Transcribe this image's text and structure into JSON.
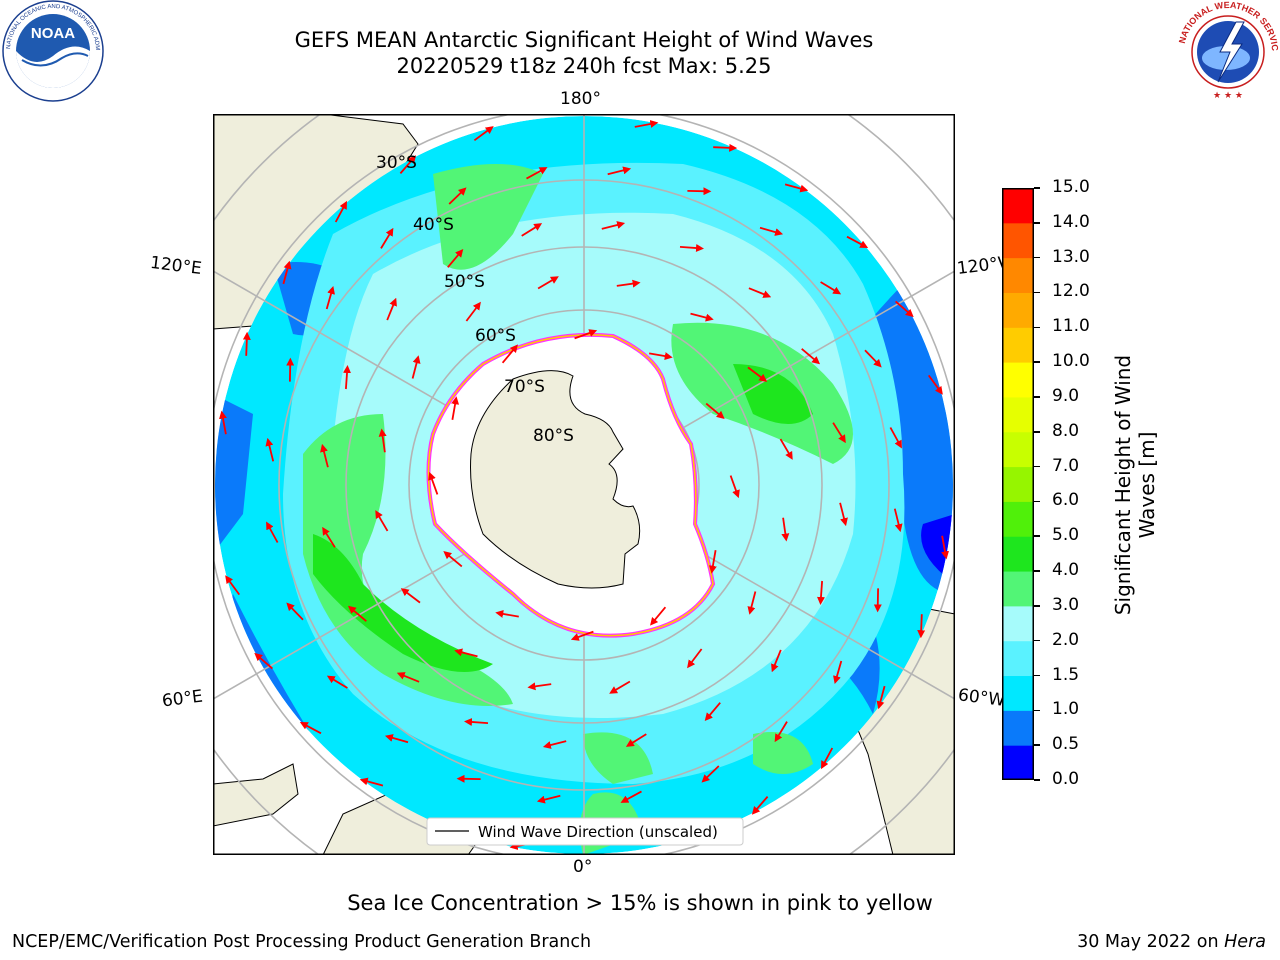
{
  "header": {
    "title_line_1": "GEFS MEAN Antarctic Significant Height of Wind Waves",
    "title_line_2": "20220529 t18z 240h fcst   Max: 5.25"
  },
  "logos": {
    "noaa": {
      "text": "NOAA",
      "ring_text": "NATIONAL OCEANIC AND ATMOSPHERIC ADMINISTRATION · U.S. DEPARTMENT OF COMMERCE"
    },
    "nws": {
      "ring_text": "NATIONAL WEATHER SERVICE"
    }
  },
  "map": {
    "longitude_labels": {
      "top": "180°",
      "bottom": "0°",
      "upper_left": "120°E",
      "upper_right": "120°W",
      "lower_left": "60°E",
      "lower_right": "60°W"
    },
    "latitude_labels": [
      "30°S",
      "40°S",
      "50°S",
      "60°S",
      "70°S",
      "80°S"
    ],
    "legend_label": "Wind Wave Direction (unscaled)",
    "colors": {
      "land": "#efeedc",
      "ice": "#ffffff",
      "arrow": "#ff0000",
      "grid": "#b4b4b4",
      "ice_edge": "#ff33ff"
    }
  },
  "colorbar": {
    "label": "Significant Height of Wind Waves [m]",
    "ticks": [
      "0.0",
      "0.5",
      "1.0",
      "1.5",
      "2.0",
      "3.0",
      "4.0",
      "5.0",
      "6.0",
      "7.0",
      "8.0",
      "9.0",
      "10.0",
      "11.0",
      "12.0",
      "13.0",
      "14.0",
      "15.0"
    ],
    "colors": [
      "#0000ff",
      "#0a7afa",
      "#00e8ff",
      "#5af2ff",
      "#a6fbfb",
      "#52f576",
      "#1ee61e",
      "#50f00a",
      "#96f500",
      "#c8ff00",
      "#e6ff00",
      "#ffff00",
      "#ffcc00",
      "#ffaa00",
      "#ff8800",
      "#ff5500",
      "#ff0000"
    ]
  },
  "footer": {
    "ice_note": "Sea Ice Concentration > 15% is shown in pink to yellow",
    "credit": "NCEP/EMC/Verification Post Processing Product Generation Branch",
    "date": "30 May 2022 on",
    "host": "Hera"
  }
}
